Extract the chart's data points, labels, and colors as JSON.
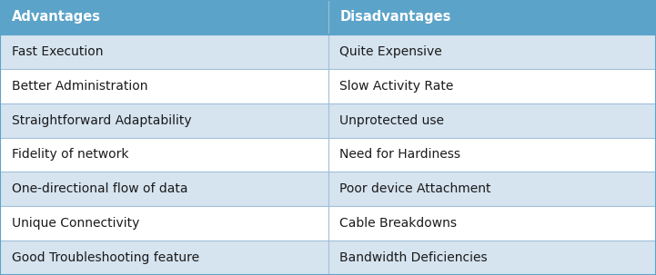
{
  "header": [
    "Advantages",
    "Disadvantages"
  ],
  "rows": [
    [
      "Fast Execution",
      "Quite Expensive"
    ],
    [
      "Better Administration",
      "Slow Activity Rate"
    ],
    [
      "Straightforward Adaptability",
      "Unprotected use"
    ],
    [
      "Fidelity of network",
      "Need for Hardiness"
    ],
    [
      "One-directional flow of data",
      "Poor device Attachment"
    ],
    [
      "Unique Connectivity",
      "Cable Breakdowns"
    ],
    [
      "Good Troubleshooting feature",
      "Bandwidth Deficiencies"
    ]
  ],
  "header_bg": "#5BA3C9",
  "row_bg_odd": "#D6E4F0",
  "row_bg_even": "#FFFFFF",
  "header_text_color": "#FFFFFF",
  "row_text_color": "#1A1A1A",
  "col_split": 0.5,
  "header_fontsize": 10.5,
  "row_fontsize": 10,
  "divider_color": "#A0BFDA",
  "outer_border_color": "#5BA3C9",
  "fig_width": 7.21,
  "fig_height": 3.03,
  "dpi": 100
}
